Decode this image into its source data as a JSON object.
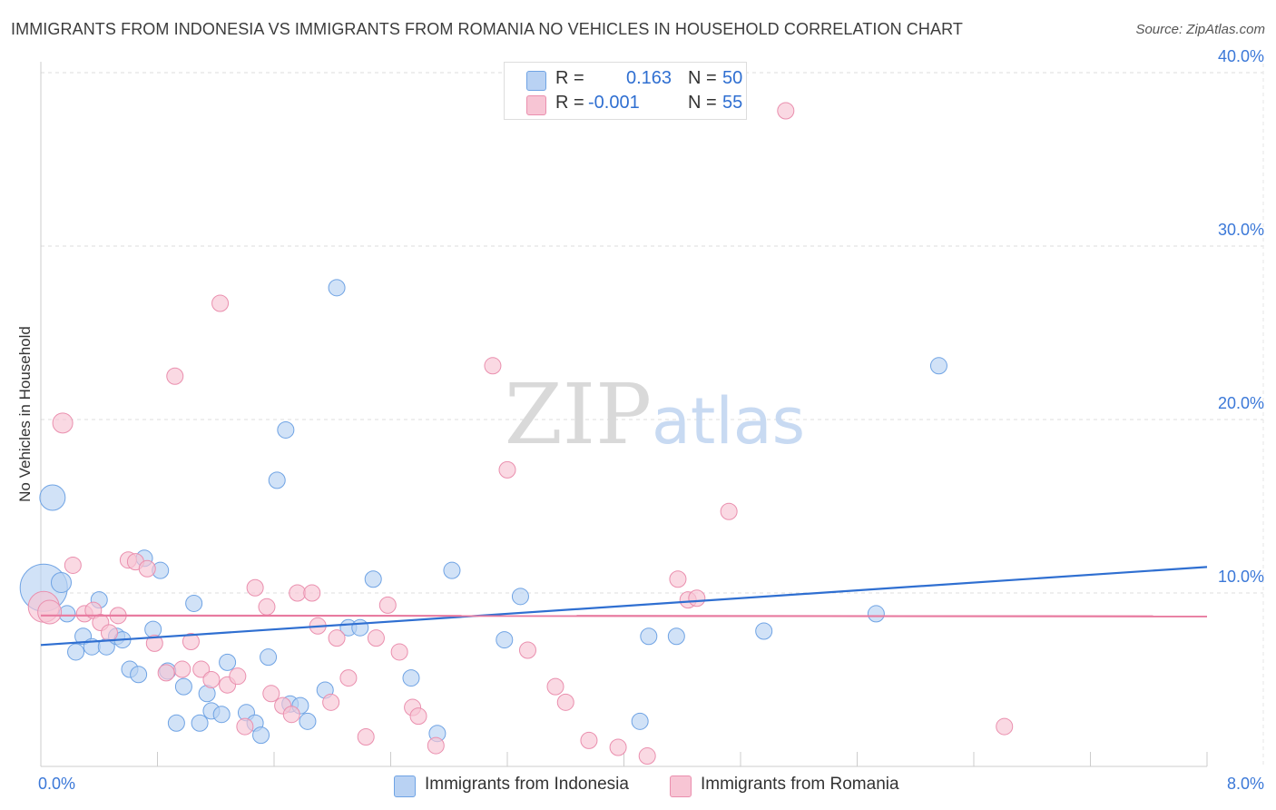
{
  "chart_data": {
    "type": "scatter",
    "title": "IMMIGRANTS FROM INDONESIA VS IMMIGRANTS FROM ROMANIA NO VEHICLES IN HOUSEHOLD CORRELATION CHART",
    "source": "Source: ZipAtlas.com",
    "ylabel": "No Vehicles in Household",
    "xlabel": "",
    "xlim": [
      0,
      8
    ],
    "ylim": [
      0,
      40
    ],
    "x_tick_labels": {
      "min": "0.0%",
      "max": "8.0%"
    },
    "y_ticks": [
      {
        "value": 10,
        "label": "10.0%"
      },
      {
        "value": 20,
        "label": "20.0%"
      },
      {
        "value": 30,
        "label": "30.0%"
      },
      {
        "value": 40,
        "label": "40.0%"
      }
    ],
    "x_minor_ticks": [
      0.8,
      1.6,
      2.4,
      3.2,
      4.0,
      4.8,
      5.6,
      6.4,
      7.2,
      8.0
    ],
    "watermark": {
      "part1": "ZIP",
      "part2": "atlas"
    },
    "stats": [
      {
        "r_label": "R =",
        "r_value": "0.163",
        "n_label": "N =",
        "n_value": "50"
      },
      {
        "r_label": "R =",
        "r_value": "-0.001",
        "n_label": "N =",
        "n_value": "55"
      }
    ],
    "series": [
      {
        "name": "Immigrants from Indonesia",
        "color": "#6fa3e4",
        "fill": "#b9d2f3",
        "trend": {
          "x0": 0.0,
          "y0": 7.0,
          "x1": 8.0,
          "y1": 11.5,
          "color": "#2f6fd1"
        },
        "points": [
          {
            "x": 0.02,
            "y": 10.3,
            "s": 26
          },
          {
            "x": 0.08,
            "y": 15.5,
            "s": 14
          },
          {
            "x": 0.14,
            "y": 10.6,
            "s": 11
          },
          {
            "x": 0.18,
            "y": 8.8,
            "s": 9
          },
          {
            "x": 0.24,
            "y": 6.6,
            "s": 9
          },
          {
            "x": 0.29,
            "y": 7.5,
            "s": 9
          },
          {
            "x": 0.35,
            "y": 6.9,
            "s": 9
          },
          {
            "x": 0.4,
            "y": 9.6,
            "s": 9
          },
          {
            "x": 0.45,
            "y": 6.9,
            "s": 9
          },
          {
            "x": 0.52,
            "y": 7.5,
            "s": 9
          },
          {
            "x": 0.56,
            "y": 7.3,
            "s": 9
          },
          {
            "x": 0.61,
            "y": 5.6,
            "s": 9
          },
          {
            "x": 0.67,
            "y": 5.3,
            "s": 9
          },
          {
            "x": 0.71,
            "y": 12.0,
            "s": 9
          },
          {
            "x": 0.77,
            "y": 7.9,
            "s": 9
          },
          {
            "x": 0.82,
            "y": 11.3,
            "s": 9
          },
          {
            "x": 0.87,
            "y": 5.5,
            "s": 9
          },
          {
            "x": 0.93,
            "y": 2.5,
            "s": 9
          },
          {
            "x": 0.98,
            "y": 4.6,
            "s": 9
          },
          {
            "x": 1.05,
            "y": 9.4,
            "s": 9
          },
          {
            "x": 1.09,
            "y": 2.5,
            "s": 9
          },
          {
            "x": 1.14,
            "y": 4.2,
            "s": 9
          },
          {
            "x": 1.17,
            "y": 3.2,
            "s": 9
          },
          {
            "x": 1.24,
            "y": 3.0,
            "s": 9
          },
          {
            "x": 1.28,
            "y": 6.0,
            "s": 9
          },
          {
            "x": 1.41,
            "y": 3.1,
            "s": 9
          },
          {
            "x": 1.47,
            "y": 2.5,
            "s": 9
          },
          {
            "x": 1.51,
            "y": 1.8,
            "s": 9
          },
          {
            "x": 1.56,
            "y": 6.3,
            "s": 9
          },
          {
            "x": 1.62,
            "y": 16.5,
            "s": 9
          },
          {
            "x": 1.68,
            "y": 19.4,
            "s": 9
          },
          {
            "x": 1.71,
            "y": 3.6,
            "s": 9
          },
          {
            "x": 1.78,
            "y": 3.5,
            "s": 9
          },
          {
            "x": 1.83,
            "y": 2.6,
            "s": 9
          },
          {
            "x": 1.95,
            "y": 4.4,
            "s": 9
          },
          {
            "x": 2.03,
            "y": 27.6,
            "s": 9
          },
          {
            "x": 2.11,
            "y": 8.0,
            "s": 9
          },
          {
            "x": 2.19,
            "y": 8.0,
            "s": 9
          },
          {
            "x": 2.28,
            "y": 10.8,
            "s": 9
          },
          {
            "x": 2.54,
            "y": 5.1,
            "s": 9
          },
          {
            "x": 2.72,
            "y": 1.9,
            "s": 9
          },
          {
            "x": 2.82,
            "y": 11.3,
            "s": 9
          },
          {
            "x": 3.18,
            "y": 7.3,
            "s": 9
          },
          {
            "x": 3.29,
            "y": 9.8,
            "s": 9
          },
          {
            "x": 4.11,
            "y": 2.6,
            "s": 9
          },
          {
            "x": 4.17,
            "y": 7.5,
            "s": 9
          },
          {
            "x": 4.36,
            "y": 7.5,
            "s": 9
          },
          {
            "x": 4.96,
            "y": 7.8,
            "s": 9
          },
          {
            "x": 5.73,
            "y": 8.8,
            "s": 9
          },
          {
            "x": 6.16,
            "y": 23.1,
            "s": 9
          }
        ]
      },
      {
        "name": "Immigrants from Romania",
        "color": "#ea8fae",
        "fill": "#f7c5d4",
        "trend": {
          "x0": 0.0,
          "y0": 8.7,
          "x1": 8.0,
          "y1": 8.65,
          "color": "#e87ba0"
        },
        "points": [
          {
            "x": 0.02,
            "y": 9.2,
            "s": 17
          },
          {
            "x": 0.06,
            "y": 8.9,
            "s": 13
          },
          {
            "x": 0.15,
            "y": 19.8,
            "s": 11
          },
          {
            "x": 0.22,
            "y": 11.6,
            "s": 9
          },
          {
            "x": 0.3,
            "y": 8.8,
            "s": 9
          },
          {
            "x": 0.36,
            "y": 9.0,
            "s": 9
          },
          {
            "x": 0.41,
            "y": 8.3,
            "s": 9
          },
          {
            "x": 0.47,
            "y": 7.7,
            "s": 9
          },
          {
            "x": 0.53,
            "y": 8.7,
            "s": 9
          },
          {
            "x": 0.6,
            "y": 11.9,
            "s": 9
          },
          {
            "x": 0.65,
            "y": 11.8,
            "s": 9
          },
          {
            "x": 0.73,
            "y": 11.4,
            "s": 9
          },
          {
            "x": 0.78,
            "y": 7.1,
            "s": 9
          },
          {
            "x": 0.86,
            "y": 5.4,
            "s": 9
          },
          {
            "x": 0.92,
            "y": 22.5,
            "s": 9
          },
          {
            "x": 0.97,
            "y": 5.6,
            "s": 9
          },
          {
            "x": 1.03,
            "y": 7.2,
            "s": 9
          },
          {
            "x": 1.1,
            "y": 5.6,
            "s": 9
          },
          {
            "x": 1.17,
            "y": 5.0,
            "s": 9
          },
          {
            "x": 1.23,
            "y": 26.7,
            "s": 9
          },
          {
            "x": 1.28,
            "y": 4.7,
            "s": 9
          },
          {
            "x": 1.35,
            "y": 5.2,
            "s": 9
          },
          {
            "x": 1.4,
            "y": 2.3,
            "s": 9
          },
          {
            "x": 1.47,
            "y": 10.3,
            "s": 9
          },
          {
            "x": 1.55,
            "y": 9.2,
            "s": 9
          },
          {
            "x": 1.58,
            "y": 4.2,
            "s": 9
          },
          {
            "x": 1.66,
            "y": 3.5,
            "s": 9
          },
          {
            "x": 1.72,
            "y": 3.0,
            "s": 9
          },
          {
            "x": 1.76,
            "y": 10.0,
            "s": 9
          },
          {
            "x": 1.86,
            "y": 10.0,
            "s": 9
          },
          {
            "x": 1.9,
            "y": 8.1,
            "s": 9
          },
          {
            "x": 1.99,
            "y": 3.7,
            "s": 9
          },
          {
            "x": 2.03,
            "y": 7.4,
            "s": 9
          },
          {
            "x": 2.11,
            "y": 5.1,
            "s": 9
          },
          {
            "x": 2.23,
            "y": 1.7,
            "s": 9
          },
          {
            "x": 2.3,
            "y": 7.4,
            "s": 9
          },
          {
            "x": 2.38,
            "y": 9.3,
            "s": 9
          },
          {
            "x": 2.46,
            "y": 6.6,
            "s": 9
          },
          {
            "x": 2.55,
            "y": 3.4,
            "s": 9
          },
          {
            "x": 2.59,
            "y": 2.9,
            "s": 9
          },
          {
            "x": 2.71,
            "y": 1.2,
            "s": 9
          },
          {
            "x": 3.1,
            "y": 23.1,
            "s": 9
          },
          {
            "x": 3.2,
            "y": 17.1,
            "s": 9
          },
          {
            "x": 3.34,
            "y": 6.7,
            "s": 9
          },
          {
            "x": 3.53,
            "y": 4.6,
            "s": 9
          },
          {
            "x": 3.6,
            "y": 3.7,
            "s": 9
          },
          {
            "x": 3.76,
            "y": 1.5,
            "s": 9
          },
          {
            "x": 3.96,
            "y": 1.1,
            "s": 9
          },
          {
            "x": 4.16,
            "y": 0.6,
            "s": 9
          },
          {
            "x": 4.37,
            "y": 10.8,
            "s": 9
          },
          {
            "x": 4.44,
            "y": 9.6,
            "s": 9
          },
          {
            "x": 4.5,
            "y": 9.7,
            "s": 9
          },
          {
            "x": 4.72,
            "y": 14.7,
            "s": 9
          },
          {
            "x": 5.11,
            "y": 37.8,
            "s": 9
          },
          {
            "x": 6.61,
            "y": 2.3,
            "s": 9
          }
        ]
      }
    ]
  }
}
